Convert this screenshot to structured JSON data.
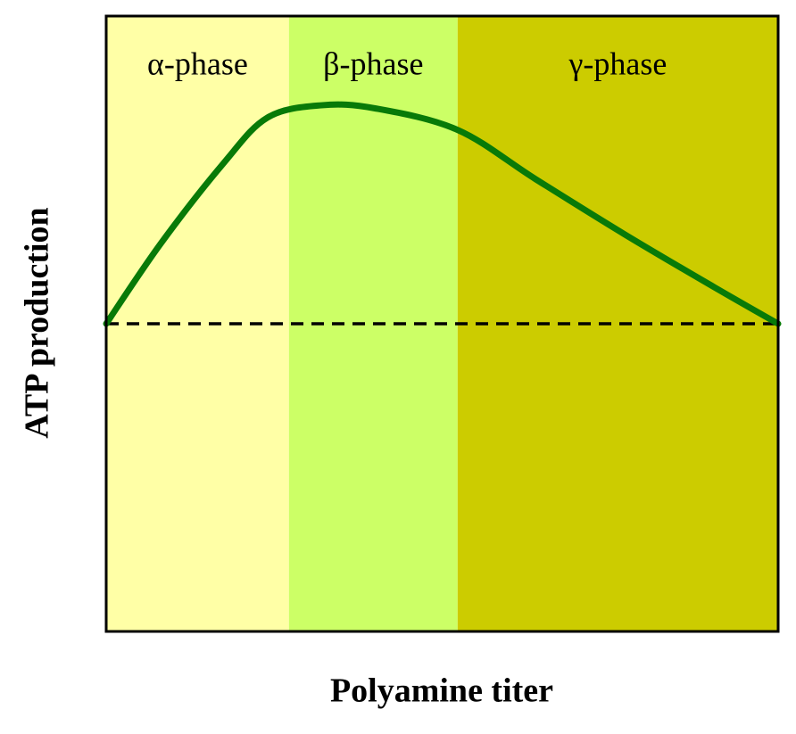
{
  "chart_data": {
    "type": "line",
    "x_label": "Polyamine titer",
    "y_label": "ATP production",
    "xlim": [
      0,
      100
    ],
    "ylim": [
      -1,
      1
    ],
    "regions": [
      {
        "label": "α-phase",
        "x0": 0,
        "x1": 27.2,
        "color": "#ffffa6"
      },
      {
        "label": "β-phase",
        "x0": 27.2,
        "x1": 52.3,
        "color": "#ccff66"
      },
      {
        "label": "γ-phase",
        "x0": 52.3,
        "x1": 100,
        "color": "#cccc00"
      }
    ],
    "reference_line": {
      "y": 0,
      "style": "dashed",
      "color": "#000000"
    },
    "series": [
      {
        "color": "#087a08",
        "x": [
          0,
          8.1,
          17.4,
          24,
          32,
          40,
          52.3,
          63.9,
          77.2,
          90.4,
          100
        ],
        "values": [
          0,
          0.26,
          0.52,
          0.67,
          0.71,
          0.7,
          0.63,
          0.47,
          0.29,
          0.12,
          0
        ]
      }
    ]
  }
}
